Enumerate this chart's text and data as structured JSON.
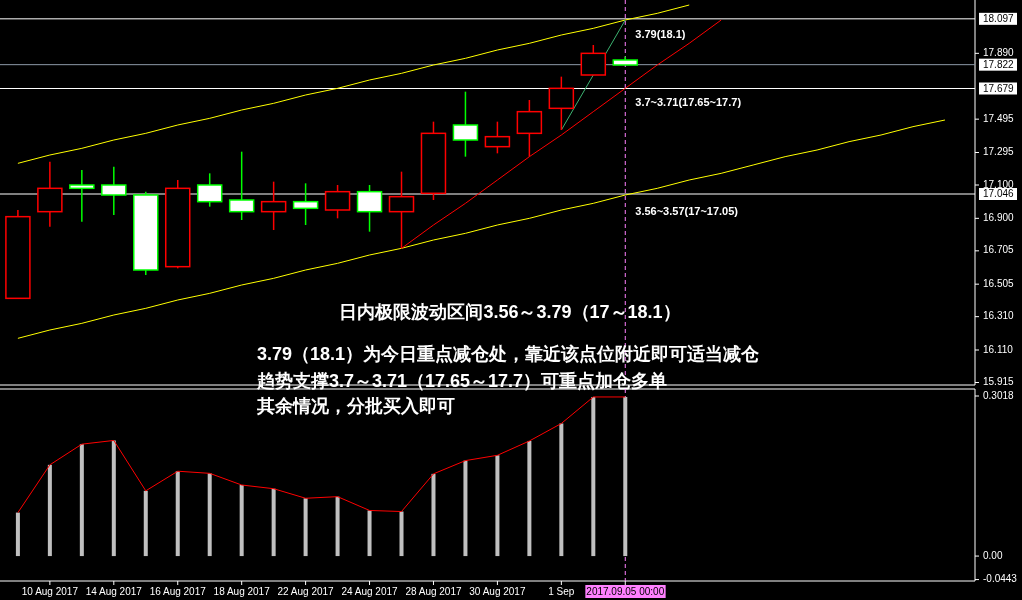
{
  "chart_data": [
    {
      "type": "candlestick",
      "tick_labels": "y",
      "grid": false,
      "categories": [
        null,
        "10 Aug 2017",
        null,
        "14 Aug 2017",
        null,
        "16 Aug 2017",
        null,
        "18 Aug 2017",
        null,
        "22 Aug 2017",
        null,
        "24 Aug 2017",
        null,
        "28 Aug 2017",
        null,
        "30 Aug 2017",
        null,
        "1 Sep",
        null,
        "2017.09.05 00:00",
        null,
        null,
        null,
        null,
        null,
        null,
        null,
        null,
        null,
        null
      ],
      "ohlc": [
        [
          16.42,
          16.95,
          16.42,
          16.91
        ],
        [
          16.94,
          17.24,
          16.85,
          17.08
        ],
        [
          17.1,
          17.19,
          16.88,
          17.08
        ],
        [
          17.1,
          17.21,
          16.92,
          17.04
        ],
        [
          17.04,
          17.06,
          16.56,
          16.59
        ],
        [
          16.61,
          17.13,
          16.6,
          17.08
        ],
        [
          17.1,
          17.17,
          16.97,
          17.0
        ],
        [
          17.01,
          17.3,
          16.89,
          16.94
        ],
        [
          16.94,
          17.12,
          16.83,
          17.0
        ],
        [
          17.0,
          17.11,
          16.86,
          16.96
        ],
        [
          16.95,
          17.1,
          16.9,
          17.06
        ],
        [
          17.06,
          17.1,
          16.82,
          16.94
        ],
        [
          16.94,
          17.18,
          16.72,
          17.03
        ],
        [
          17.05,
          17.48,
          17.01,
          17.41
        ],
        [
          17.46,
          17.66,
          17.27,
          17.37
        ],
        [
          17.33,
          17.48,
          17.29,
          17.39
        ],
        [
          17.41,
          17.61,
          17.27,
          17.54
        ],
        [
          17.56,
          17.75,
          17.43,
          17.68
        ],
        [
          17.76,
          17.94,
          17.76,
          17.89
        ],
        [
          17.85,
          17.87,
          17.82,
          17.82
        ],
        null,
        null,
        null,
        null,
        null,
        null,
        null,
        null,
        null,
        null
      ],
      "colors": [
        "#ff0000",
        "#ff0000",
        "#00ff00",
        "#00ff00",
        "#00ff00",
        "#ff0000",
        "#00ff00",
        "#00ff00",
        "#ff0000",
        "#00ff00",
        "#ff0000",
        "#00ff00",
        "#ff0000",
        "#ff0000",
        "#00ff00",
        "#ff0000",
        "#ff0000",
        "#ff0000",
        "#ff0000",
        "#00ff00",
        null,
        null,
        null,
        null,
        null,
        null,
        null,
        null,
        null,
        null
      ],
      "series": [
        {
          "type": "line",
          "color": "#ffff00",
          "values": [
            17.23,
            17.28,
            17.32,
            17.37,
            17.41,
            17.46,
            17.5,
            17.55,
            17.59,
            17.64,
            17.68,
            17.73,
            17.77,
            17.82,
            17.86,
            17.91,
            17.95,
            18.0,
            18.04,
            18.09,
            18.13,
            18.18,
            null,
            null,
            null,
            null,
            null,
            null,
            null,
            null
          ]
        },
        {
          "type": "line",
          "color": "#ffff00",
          "values": [
            16.18,
            16.23,
            16.27,
            16.32,
            16.36,
            16.41,
            16.45,
            16.5,
            16.54,
            16.59,
            16.63,
            16.68,
            16.72,
            16.77,
            16.81,
            16.86,
            16.9,
            16.95,
            16.99,
            17.04,
            17.08,
            17.13,
            17.17,
            17.22,
            17.27,
            17.31,
            17.36,
            17.4,
            17.45,
            17.49
          ]
        },
        {
          "type": "line",
          "color": "#ff0000",
          "values": [
            null,
            null,
            null,
            null,
            null,
            null,
            null,
            null,
            null,
            null,
            null,
            null,
            16.72,
            16.86,
            16.99,
            17.13,
            17.27,
            17.4,
            17.54,
            17.68,
            17.82,
            17.95,
            18.09,
            null,
            null,
            null,
            null,
            null,
            null,
            null
          ]
        },
        {
          "type": "line",
          "color": "#3cb371",
          "values": [
            null,
            null,
            null,
            null,
            null,
            null,
            null,
            null,
            null,
            null,
            null,
            null,
            null,
            null,
            null,
            null,
            null,
            17.43,
            17.76,
            18.09,
            null,
            null,
            null,
            null,
            null,
            null,
            null,
            null,
            null,
            null
          ]
        }
      ],
      "ylim": [
        15.9,
        18.21
      ],
      "yticks": [
        {
          "value": 17.89,
          "label": "17.890"
        },
        17.495,
        17.295,
        {
          "value": 17.1,
          "label": "17.100"
        },
        {
          "value": 16.9,
          "label": "16.900"
        },
        16.705,
        16.505,
        {
          "value": 16.31,
          "label": "16.310"
        },
        {
          "value": 16.11,
          "label": "16.110"
        },
        15.915
      ],
      "ref_lines": [
        {
          "axis": "y",
          "value": 18.097,
          "label": "18.097",
          "color": "#ffffff"
        },
        {
          "axis": "y",
          "value": 17.822,
          "label": "17.822",
          "color": "#8c9aa8"
        },
        {
          "axis": "y",
          "value": 17.679,
          "label": "17.679",
          "color": "#ffffff"
        },
        {
          "axis": "y",
          "value": 17.046,
          "label": "17.046",
          "color": "#ffffff"
        },
        {
          "axis": "x",
          "value": "2017.09.05 00:00",
          "label": null,
          "color": "#ff80ff",
          "line_style": "dashed"
        }
      ],
      "annotations": [
        {
          "text": "3.79(18.1)",
          "x": "2017.09.05 00:00",
          "y": 18.0
        },
        {
          "text": "3.7~3.71(17.65~17.7)",
          "x": "2017.09.05 00:00",
          "y": 17.59
        },
        {
          "text": "3.56~3.57(17~17.05)",
          "x": "2017.09.05 00:00",
          "y": 16.94
        },
        "日内极限波动区间3.56～3.79（17～18.1）",
        "3.79（18.1）为今日重点减仓处，靠近该点位附近即可适当减仓",
        "趋势支撑3.7～3.71（17.65～17.7）可重点加仓多单",
        "其余情况，分批买入即可"
      ]
    },
    {
      "type": "bar",
      "grid": false,
      "categories": [
        null,
        "10 Aug 2017",
        null,
        "14 Aug 2017",
        null,
        "16 Aug 2017",
        null,
        "18 Aug 2017",
        null,
        "22 Aug 2017",
        null,
        "24 Aug 2017",
        null,
        "28 Aug 2017",
        null,
        "30 Aug 2017",
        null,
        "1 Sep",
        null,
        "2017.09.05 00:00",
        null,
        null,
        null,
        null,
        null,
        null,
        null,
        null,
        null,
        null
      ],
      "series": [
        {
          "type": "bar",
          "color": "#c0c0c0",
          "values": [
            0.082,
            0.172,
            0.211,
            0.218,
            0.123,
            0.16,
            0.156,
            0.134,
            0.127,
            0.109,
            0.112,
            0.086,
            0.084,
            0.155,
            0.18,
            0.19,
            0.217,
            0.25,
            0.3,
            0.3,
            null,
            null,
            null,
            null,
            null,
            null,
            null,
            null,
            null,
            null
          ]
        },
        {
          "type": "line",
          "color": "#ff0000",
          "values": [
            0.082,
            0.172,
            0.211,
            0.218,
            0.123,
            0.16,
            0.156,
            0.134,
            0.127,
            0.109,
            0.112,
            0.086,
            0.084,
            0.155,
            0.18,
            0.19,
            0.217,
            0.25,
            0.3,
            0.3,
            null,
            null,
            null,
            null,
            null,
            null,
            null,
            null,
            null,
            null
          ]
        }
      ],
      "ylim": [
        -0.047,
        0.315
      ],
      "yticks": [
        0.3018,
        {
          "value": 0,
          "label": "0.00"
        },
        -0.0443
      ],
      "ref_lines": [
        {
          "axis": "x",
          "value": "2017.09.05 00:00",
          "label": null,
          "color": "#ff80ff",
          "line_style": "dashed"
        }
      ]
    }
  ]
}
